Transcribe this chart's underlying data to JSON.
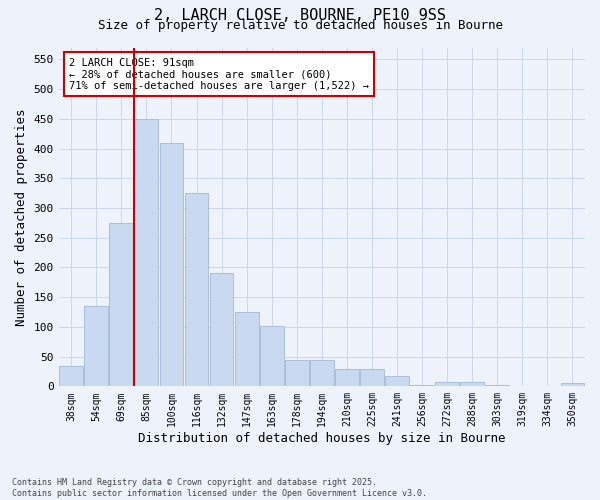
{
  "title_line1": "2, LARCH CLOSE, BOURNE, PE10 9SS",
  "title_line2": "Size of property relative to detached houses in Bourne",
  "xlabel": "Distribution of detached houses by size in Bourne",
  "ylabel": "Number of detached properties",
  "bar_labels": [
    "38sqm",
    "54sqm",
    "69sqm",
    "85sqm",
    "100sqm",
    "116sqm",
    "132sqm",
    "147sqm",
    "163sqm",
    "178sqm",
    "194sqm",
    "210sqm",
    "225sqm",
    "241sqm",
    "256sqm",
    "272sqm",
    "288sqm",
    "303sqm",
    "319sqm",
    "334sqm",
    "350sqm"
  ],
  "bar_values": [
    35,
    135,
    275,
    450,
    410,
    325,
    190,
    125,
    102,
    45,
    45,
    30,
    30,
    18,
    3,
    7,
    7,
    2,
    1,
    0,
    5
  ],
  "bar_color": "#c9d9f0",
  "bar_edge_color": "#a0b8d8",
  "grid_color": "#c8d8ee",
  "background_color": "#eef2fb",
  "vline_color": "#cc0000",
  "annotation_text": "2 LARCH CLOSE: 91sqm\n← 28% of detached houses are smaller (600)\n71% of semi-detached houses are larger (1,522) →",
  "annotation_box_color": "#ffffff",
  "annotation_box_edge": "#cc0000",
  "footnote": "Contains HM Land Registry data © Crown copyright and database right 2025.\nContains public sector information licensed under the Open Government Licence v3.0.",
  "ylim": [
    0,
    570
  ],
  "yticks": [
    0,
    50,
    100,
    150,
    200,
    250,
    300,
    350,
    400,
    450,
    500,
    550
  ]
}
